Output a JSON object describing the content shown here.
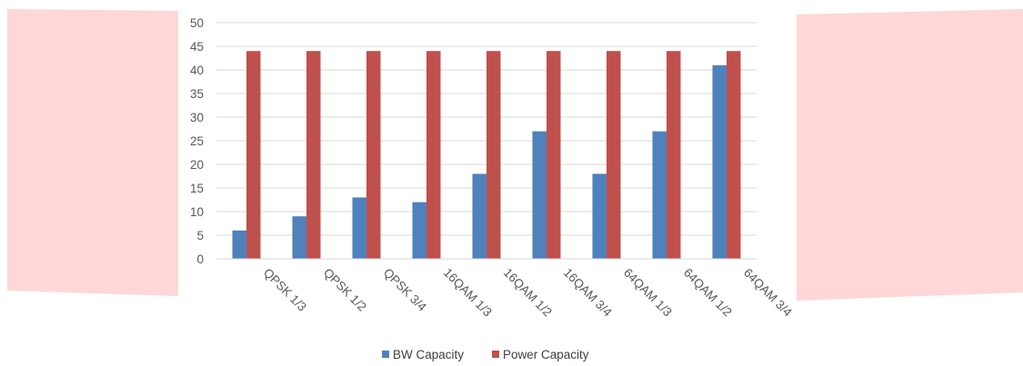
{
  "chart_data": {
    "type": "bar",
    "categories": [
      "QPSK 1/3",
      "QPSK 1/2",
      "QPSK 3/4",
      "16QAM 1/3",
      "16QAM 1/2",
      "16QAM 3/4",
      "64QAM 1/3",
      "64QAM 1/2",
      "64QAM 3/4"
    ],
    "series": [
      {
        "name": "BW Capacity",
        "values": [
          6,
          9,
          13,
          12,
          18,
          27,
          18,
          27,
          41
        ],
        "color": "#4f81bd"
      },
      {
        "name": "Power Capacity",
        "values": [
          44,
          44,
          44,
          44,
          44,
          44,
          44,
          44,
          44
        ],
        "color": "#c0504d"
      }
    ],
    "ylim": [
      0,
      50
    ],
    "yticks": [
      0,
      5,
      10,
      15,
      20,
      25,
      30,
      35,
      40,
      45,
      50
    ],
    "grid": true,
    "legend_position": "bottom",
    "title": "",
    "xlabel": "",
    "ylabel": "",
    "decoration_color": "#ffd7d8"
  }
}
